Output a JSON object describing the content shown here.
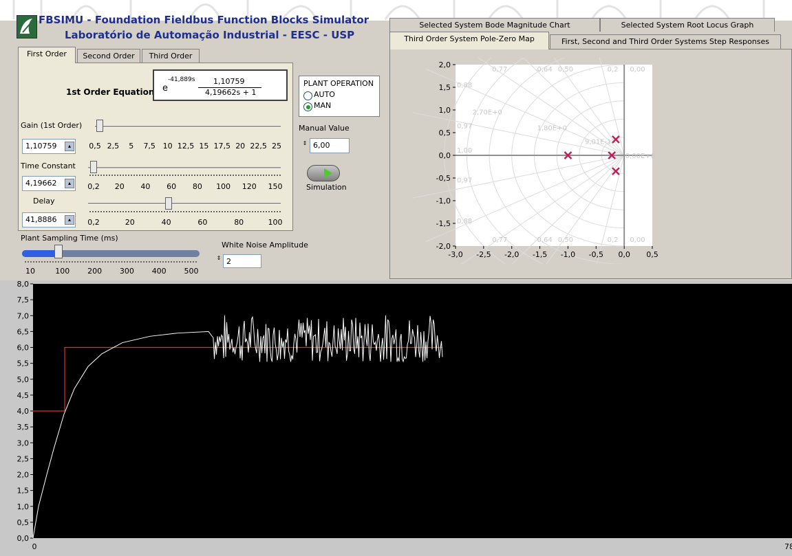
{
  "app": {
    "title_line1": "FBSIMU - Foundation Fieldbus Function Blocks Simulator",
    "title_line2": "Laboratório de Automação Industrial - EESC - USP"
  },
  "left_tabs": [
    "First Order",
    "Second Order",
    "Third Order"
  ],
  "first_order": {
    "equation_label": "1st Order Equation",
    "eq_exp_base": "e",
    "eq_exponent": "-41,889s",
    "eq_numerator": "1,10759",
    "eq_denominator": "4,19662s + 1",
    "gain": {
      "label": "Gain (1st Order)",
      "value": "1,10759",
      "ticks": [
        "0,5",
        "2,5",
        "5",
        "7,5",
        "10",
        "12,5",
        "15",
        "17,5",
        "20",
        "22,5",
        "25"
      ],
      "fraction": 0.025
    },
    "time_constant": {
      "label": "Time Constant",
      "value": "4,19662",
      "ticks": [
        "0,2",
        "20",
        "40",
        "60",
        "80",
        "100",
        "120",
        "150"
      ],
      "fraction": 0.027
    },
    "delay": {
      "label": "Delay",
      "value": "41,8886",
      "ticks": [
        "0,2",
        "20",
        "40",
        "60",
        "80",
        "100"
      ],
      "fraction": 0.418
    }
  },
  "plant_operation": {
    "title": "PLANT OPERATION",
    "options": [
      "AUTO",
      "MAN"
    ],
    "selected": "MAN"
  },
  "manual_value": {
    "label": "Manual Value",
    "value": "6,00"
  },
  "simulation": {
    "label": "Simulation"
  },
  "sampling": {
    "label": "Plant Sampling Time (ms)",
    "ticks": [
      "10",
      "100",
      "200",
      "300",
      "400",
      "500"
    ],
    "value": 100
  },
  "white_noise": {
    "label": "White Noise Amplitude",
    "value": "2"
  },
  "right_tabs_row1": [
    "Selected System Bode Magnitude Chart",
    "Selected System Root Locus Graph"
  ],
  "right_tabs_row2": [
    "Third Order System Pole-Zero Map",
    "First, Second and Third Order Systems Step Responses"
  ],
  "colors": {
    "accent": "#1f2f8f",
    "setpoint": "#e03020",
    "response": "#ffffff",
    "pole": "#c0205a",
    "scale_fill": "#3060e0"
  },
  "chart_data": [
    {
      "type": "scatter",
      "xlim": [
        -3.0,
        0.5
      ],
      "ylim": [
        -2.0,
        2.0
      ],
      "x_ticks": [
        "-3,0",
        "-2,5",
        "-2,0",
        "-1,5",
        "-1,0",
        "-0,5",
        "0,0",
        "0,5"
      ],
      "y_ticks": [
        "2,0",
        "1,5",
        "1,0",
        "0,5",
        "0,0",
        "-0,5",
        "-1,0",
        "-1,5",
        "-2,0"
      ],
      "damping_labels": [
        "0,77",
        "0,64",
        "0,50",
        "0,2",
        "0,00",
        "0,88",
        "0,97",
        "1,00"
      ],
      "freq_labels": [
        "2,70E+0",
        "1,80E+0",
        "9,01E-1",
        "0,00E+0"
      ],
      "poles": [
        {
          "x": -1.0,
          "y": 0.0
        },
        {
          "x": -0.22,
          "y": 0.0
        },
        {
          "x": -0.15,
          "y": 0.35
        },
        {
          "x": -0.15,
          "y": -0.35
        }
      ],
      "grid": true
    },
    {
      "type": "line",
      "ylim": [
        0.0,
        8.0
      ],
      "y_ticks": [
        "8,0",
        "7,5",
        "7,0",
        "6,5",
        "6,0",
        "5,5",
        "5,0",
        "4,5",
        "4,0",
        "3,5",
        "3,0",
        "2,5",
        "2,0",
        "1,5",
        "1,0",
        "0,5",
        "0,0"
      ],
      "x_ticks": [
        "0",
        "78"
      ],
      "series": [
        {
          "points": [
            [
              0,
              4
            ],
            [
              46,
              4
            ],
            [
              46,
              6
            ],
            [
              595,
              6
            ]
          ]
        },
        {
          "points": [
            [
              0,
              0
            ],
            [
              8,
              1.0
            ],
            [
              20,
              2.0
            ],
            [
              30,
              2.8
            ],
            [
              45,
              3.9
            ],
            [
              60,
              4.7
            ],
            [
              80,
              5.4
            ],
            [
              100,
              5.8
            ],
            [
              130,
              6.15
            ],
            [
              170,
              6.35
            ],
            [
              210,
              6.45
            ],
            [
              255,
              6.5
            ],
            [
              262,
              6.3
            ]
          ],
          "noise_from": 262,
          "noise_to": 595,
          "noise_center": 6.5,
          "noise_amplitude": 1.0
        }
      ]
    }
  ]
}
